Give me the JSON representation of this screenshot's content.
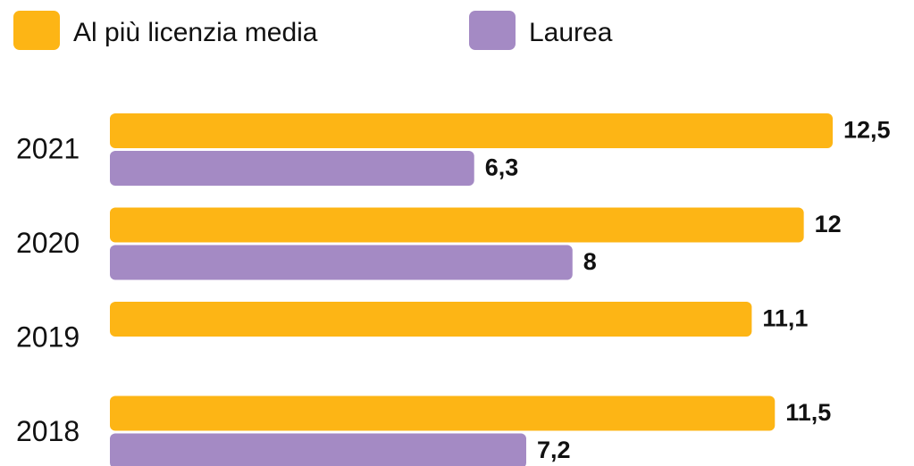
{
  "chart_data": {
    "type": "bar",
    "orientation": "horizontal",
    "categories": [
      "2021",
      "2020",
      "2019",
      "2018"
    ],
    "series": [
      {
        "name": "Al più licenzia media",
        "color": "#fdb515",
        "values": [
          12.5,
          12,
          11.1,
          11.5
        ],
        "value_labels": [
          "12,5",
          "12",
          "11,1",
          "11,5"
        ]
      },
      {
        "name": "Laurea",
        "color": "#a48ac4",
        "values": [
          6.3,
          8,
          null,
          7.2
        ],
        "value_labels": [
          "6,3",
          "8",
          null,
          "7,2"
        ]
      }
    ]
  }
}
